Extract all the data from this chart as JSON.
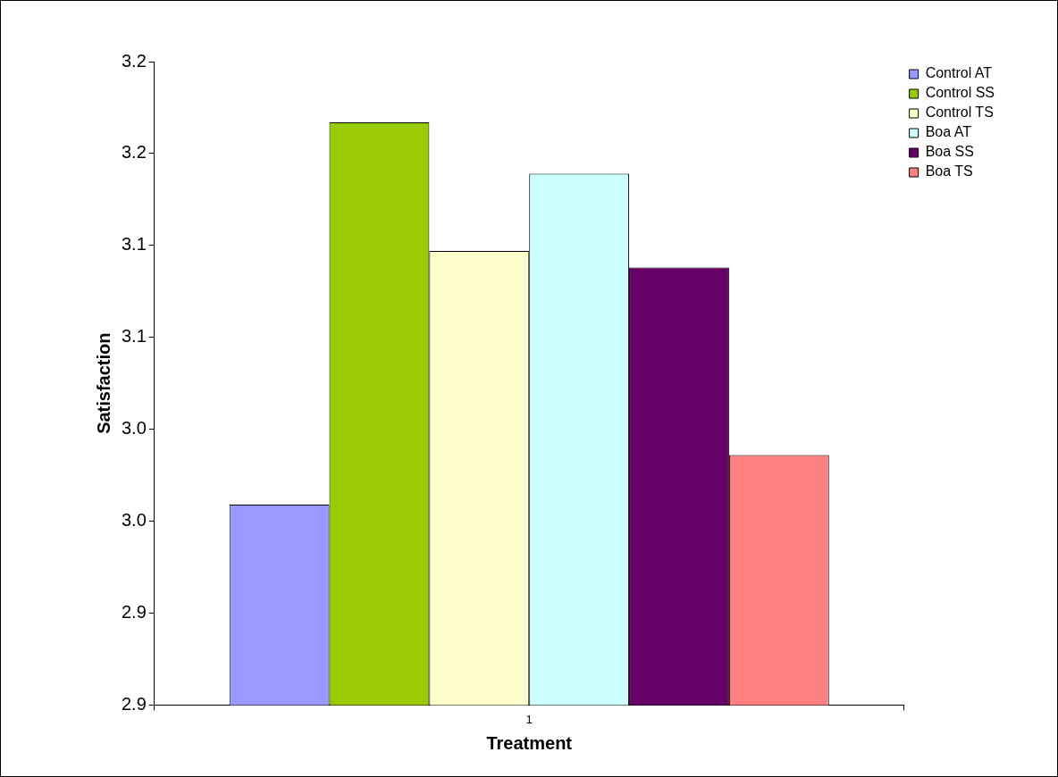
{
  "chart_data": {
    "type": "bar",
    "xlabel": "Treatment",
    "ylabel": "Satisfaction",
    "categories": [
      "1"
    ],
    "series": [
      {
        "name": "Control AT",
        "color": "#9999ff",
        "values": [
          2.959
        ]
      },
      {
        "name": "Control SS",
        "color": "#99cc00",
        "values": [
          3.167
        ]
      },
      {
        "name": "Control TS",
        "color": "#ffffcc",
        "values": [
          3.097
        ]
      },
      {
        "name": "Boa AT",
        "color": "#ccffff",
        "values": [
          3.139
        ]
      },
      {
        "name": "Boa SS",
        "color": "#660066",
        "values": [
          3.088
        ]
      },
      {
        "name": "Boa TS",
        "color": "#ff8080",
        "values": [
          2.986
        ]
      }
    ],
    "ylim": [
      2.85,
      3.2
    ],
    "yticks": [
      {
        "value": 2.85,
        "label": "2.9"
      },
      {
        "value": 2.9,
        "label": "2.9"
      },
      {
        "value": 2.95,
        "label": "3.0"
      },
      {
        "value": 3.0,
        "label": "3.0"
      },
      {
        "value": 3.05,
        "label": "3.1"
      },
      {
        "value": 3.1,
        "label": "3.1"
      },
      {
        "value": 3.15,
        "label": "3.2"
      },
      {
        "value": 3.2,
        "label": "3.2"
      }
    ],
    "grid": false,
    "legend": "top right"
  }
}
